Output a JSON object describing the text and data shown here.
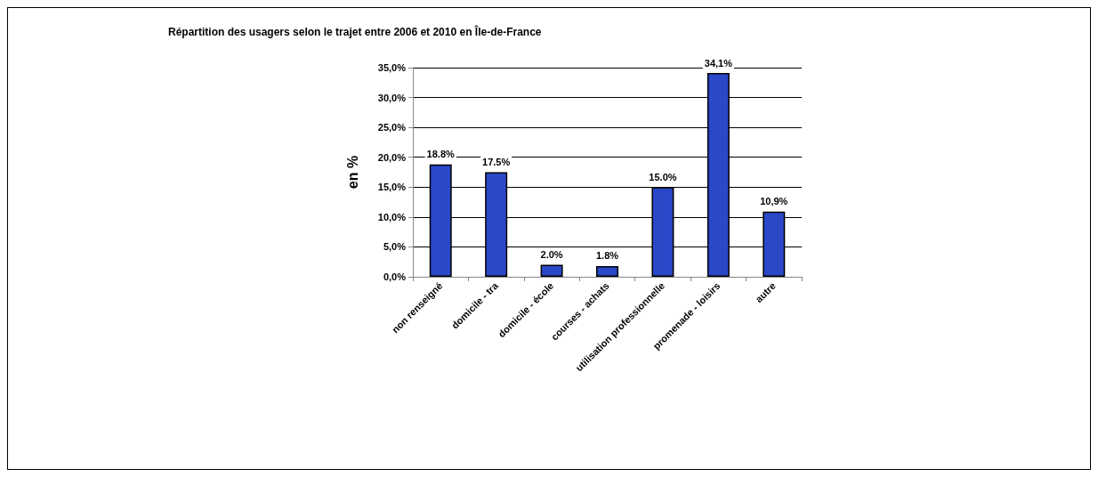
{
  "chart_data": {
    "type": "bar",
    "title": "Répartition des usagers selon le trajet entre 2006 et 2010 en Île-de-France",
    "ylabel": "en %",
    "categories": [
      "non renseigné",
      "domicile - tra",
      "domicile - école",
      "courses - achats",
      "utilisation professionnelle",
      "promenade - loisirs",
      "autre"
    ],
    "values": [
      18.8,
      17.5,
      2.0,
      1.8,
      15.0,
      34.1,
      10.9
    ],
    "value_labels": [
      "18.8%",
      "17.5%",
      "2.0%",
      "1.8%",
      "15.0%",
      "34,1%",
      "10,9%"
    ],
    "color": "#2a48c8",
    "ylim": [
      0,
      35
    ],
    "yticks": [
      {
        "value": 0,
        "label": "0,0%"
      },
      {
        "value": 5,
        "label": "5,0%"
      },
      {
        "value": 10,
        "label": "10,0%"
      },
      {
        "value": 15,
        "label": "15,0%"
      },
      {
        "value": 20,
        "label": "20,0%"
      },
      {
        "value": 25,
        "label": "25,0%"
      },
      {
        "value": 30,
        "label": "30,0%"
      },
      {
        "value": 35,
        "label": "35,0%"
      }
    ],
    "grid": "y"
  }
}
